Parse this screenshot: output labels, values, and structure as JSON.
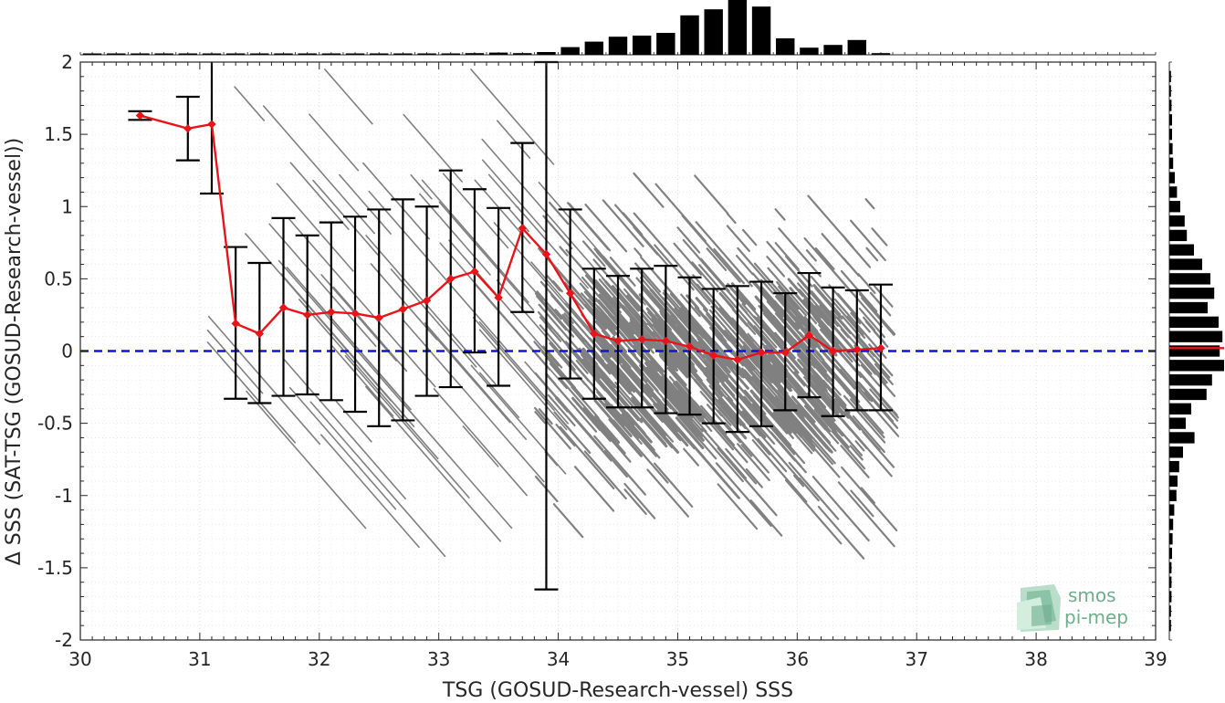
{
  "chart_data": {
    "type": "scatter",
    "xlabel": "TSG (GOSUD-Research-vessel) SSS",
    "ylabel": "Δ SSS (SAT-TSG (GOSUD-Research-vessel))",
    "xlim": [
      30,
      39
    ],
    "ylim": [
      -2,
      2
    ],
    "x_ticks": [
      "30",
      "31",
      "32",
      "33",
      "34",
      "35",
      "36",
      "37",
      "38",
      "39"
    ],
    "y_ticks": [
      "-2",
      "-1.5",
      "-1",
      "-0.5",
      "0",
      "0.5",
      "1",
      "1.5",
      "2"
    ],
    "grid": true,
    "zero_line": 0,
    "binned_mean": {
      "x": [
        30.5,
        30.9,
        31.1,
        31.3,
        31.5,
        31.7,
        31.9,
        32.1,
        32.3,
        32.5,
        32.7,
        32.9,
        33.1,
        33.3,
        33.5,
        33.7,
        33.9,
        34.1,
        34.3,
        34.5,
        34.7,
        34.9,
        35.1,
        35.3,
        35.5,
        35.7,
        35.9,
        36.1,
        36.3,
        36.5,
        36.7
      ],
      "y": [
        1.63,
        1.54,
        1.57,
        0.19,
        0.12,
        0.3,
        0.25,
        0.27,
        0.26,
        0.23,
        0.29,
        0.35,
        0.5,
        0.55,
        0.37,
        0.85,
        0.67,
        0.4,
        0.12,
        0.07,
        0.08,
        0.07,
        0.03,
        -0.03,
        -0.06,
        -0.01,
        -0.01,
        0.11,
        0.0,
        0.01,
        0.02
      ],
      "low": [
        1.6,
        1.32,
        1.09,
        -0.33,
        -0.36,
        -0.31,
        -0.3,
        -0.34,
        -0.42,
        -0.52,
        -0.48,
        -0.31,
        -0.25,
        -0.01,
        -0.24,
        0.27,
        -1.65,
        -0.19,
        -0.33,
        -0.39,
        -0.39,
        -0.43,
        -0.44,
        -0.5,
        -0.56,
        -0.52,
        -0.41,
        -0.32,
        -0.45,
        -0.41,
        -0.41
      ],
      "high": [
        1.66,
        1.76,
        2.05,
        0.72,
        0.61,
        0.92,
        0.8,
        0.89,
        0.93,
        0.98,
        1.05,
        1.0,
        1.25,
        1.12,
        0.99,
        1.44,
        2.0,
        0.98,
        0.57,
        0.52,
        0.57,
        0.59,
        0.51,
        0.43,
        0.45,
        0.48,
        0.4,
        0.54,
        0.44,
        0.42,
        0.46
      ]
    },
    "histogram_x": {
      "bins": [
        30.1,
        30.3,
        30.5,
        30.7,
        30.9,
        31.1,
        31.3,
        31.5,
        31.7,
        31.9,
        32.1,
        32.3,
        32.5,
        32.7,
        32.9,
        33.1,
        33.3,
        33.5,
        33.7,
        33.9,
        34.1,
        34.3,
        34.5,
        34.7,
        34.9,
        35.1,
        35.3,
        35.5,
        35.7,
        35.9,
        36.1,
        36.3,
        36.5,
        36.7
      ],
      "relative_counts": [
        0.02,
        0.01,
        0.01,
        0.01,
        0.01,
        0.01,
        0.01,
        0.01,
        0.01,
        0.01,
        0.01,
        0.01,
        0.01,
        0.01,
        0.02,
        0.02,
        0.03,
        0.04,
        0.03,
        0.05,
        0.14,
        0.24,
        0.33,
        0.35,
        0.4,
        0.72,
        0.83,
        1.0,
        0.88,
        0.3,
        0.13,
        0.18,
        0.27,
        0.03
      ]
    },
    "histogram_y": {
      "bins": [
        1.9,
        1.8,
        1.7,
        1.6,
        1.5,
        1.4,
        1.3,
        1.2,
        1.1,
        1.0,
        0.9,
        0.8,
        0.7,
        0.6,
        0.5,
        0.4,
        0.3,
        0.2,
        0.1,
        0.0,
        -0.1,
        -0.2,
        -0.3,
        -0.4,
        -0.5,
        -0.6,
        -0.7,
        -0.8,
        -0.9,
        -1.0,
        -1.1,
        -1.2,
        -1.3,
        -1.4,
        -1.5,
        -1.6,
        -1.7,
        -1.8,
        -1.9
      ],
      "relative_counts": [
        0.03,
        0.03,
        0.04,
        0.05,
        0.05,
        0.06,
        0.07,
        0.1,
        0.14,
        0.2,
        0.28,
        0.32,
        0.45,
        0.6,
        0.75,
        0.82,
        0.7,
        0.9,
        0.97,
        0.92,
        1.0,
        0.78,
        0.68,
        0.4,
        0.3,
        0.46,
        0.25,
        0.18,
        0.15,
        0.13,
        0.09,
        0.07,
        0.06,
        0.05,
        0.04,
        0.04,
        0.04,
        0.03,
        0.03
      ],
      "mean_marker": 0.02
    }
  },
  "logo": {
    "line1": "smos",
    "line2": "pi-mep"
  },
  "colors": {
    "scatter": "#808080",
    "mean": "#e8141a",
    "errorbar": "#000000",
    "zero": "#1414cc",
    "hist": "#000000"
  }
}
